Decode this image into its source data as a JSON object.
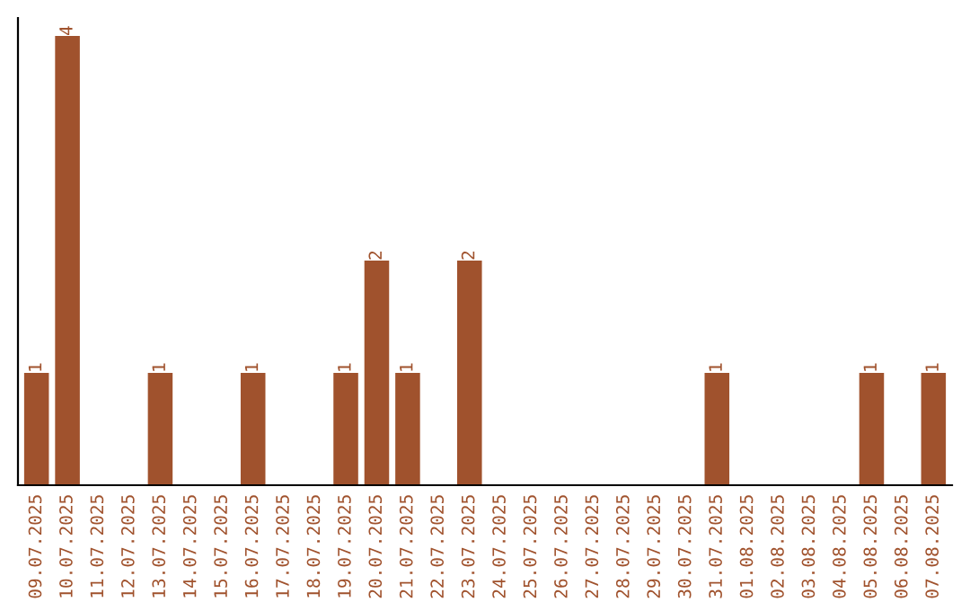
{
  "chart_data": {
    "type": "bar",
    "categories": [
      "09.07.2025",
      "10.07.2025",
      "11.07.2025",
      "12.07.2025",
      "13.07.2025",
      "14.07.2025",
      "15.07.2025",
      "16.07.2025",
      "17.07.2025",
      "18.07.2025",
      "19.07.2025",
      "20.07.2025",
      "21.07.2025",
      "22.07.2025",
      "23.07.2025",
      "24.07.2025",
      "25.07.2025",
      "26.07.2025",
      "27.07.2025",
      "28.07.2025",
      "29.07.2025",
      "30.07.2025",
      "31.07.2025",
      "01.08.2025",
      "02.08.2025",
      "03.08.2025",
      "04.08.2025",
      "05.08.2025",
      "06.08.2025",
      "07.08.2025"
    ],
    "values": [
      1,
      4,
      0,
      0,
      1,
      0,
      0,
      1,
      0,
      0,
      1,
      2,
      1,
      0,
      2,
      0,
      0,
      0,
      0,
      0,
      0,
      0,
      1,
      0,
      0,
      0,
      0,
      1,
      0,
      1
    ],
    "value_labels": [
      "1",
      "4",
      null,
      null,
      "1",
      null,
      null,
      "1",
      null,
      null,
      "1",
      "2",
      "1",
      null,
      "2",
      null,
      null,
      null,
      null,
      null,
      null,
      null,
      "1",
      null,
      null,
      null,
      null,
      "1",
      null,
      "1"
    ],
    "color": "#a0522d",
    "grid": false,
    "legend": false
  }
}
